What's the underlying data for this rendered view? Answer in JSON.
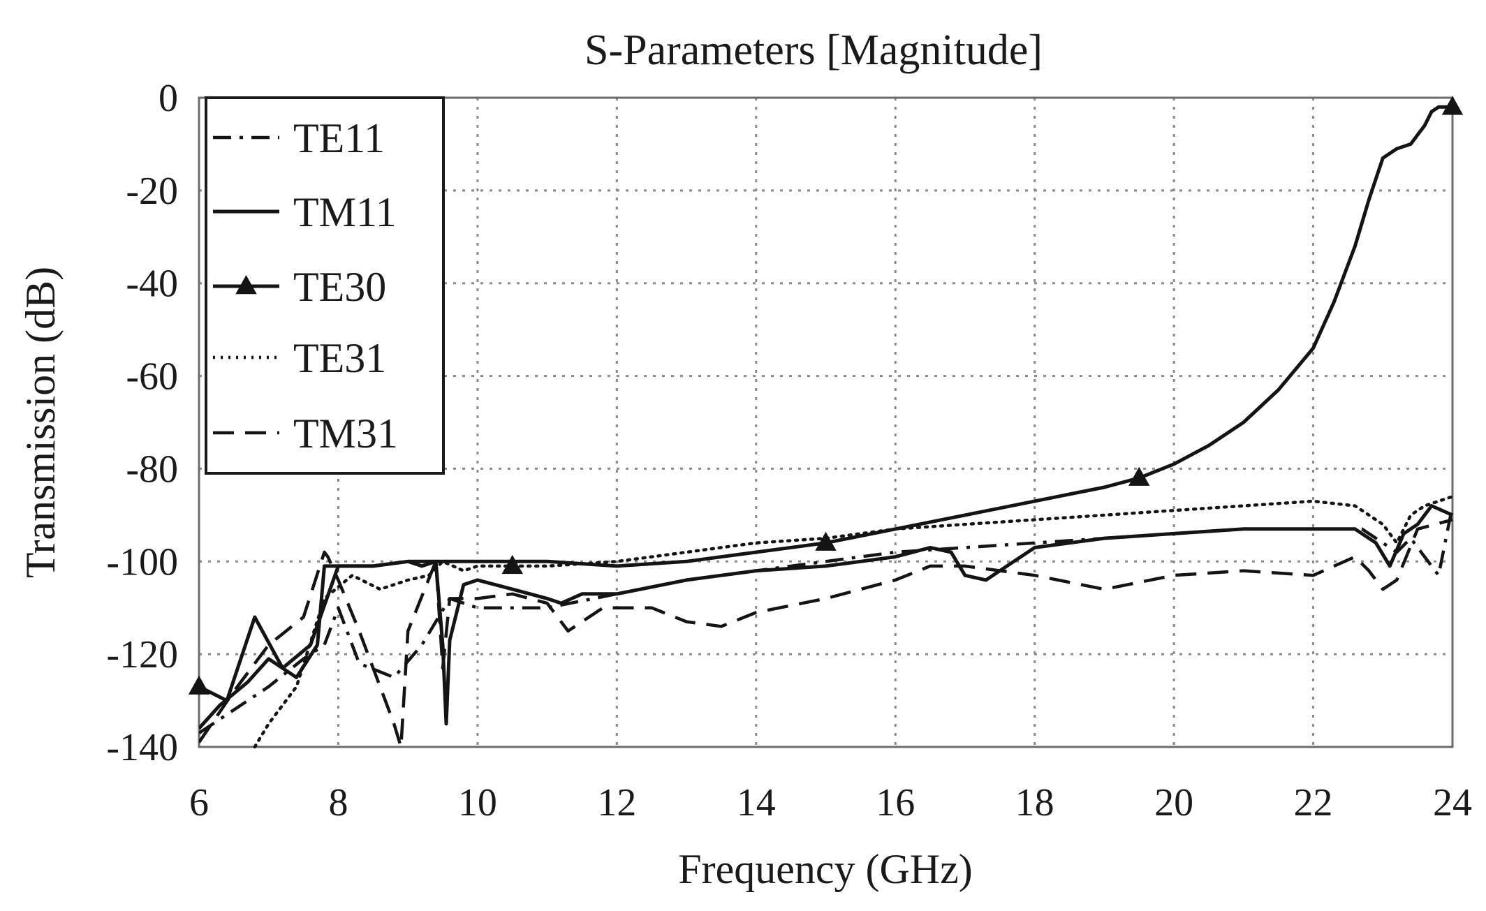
{
  "chart_data": {
    "type": "line",
    "title": "S-Parameters [Magnitude]",
    "xlabel": "Frequency (GHz)",
    "ylabel": "Transmission (dB)",
    "xlim": [
      6,
      24
    ],
    "ylim": [
      -140,
      0
    ],
    "xticks": [
      6,
      8,
      10,
      12,
      14,
      16,
      18,
      20,
      22,
      24
    ],
    "yticks": [
      0,
      -20,
      -40,
      -60,
      -80,
      -100,
      -120,
      -140
    ],
    "grid": true,
    "legend_position": "top-left",
    "series": [
      {
        "name": "TE11",
        "style": "dashdot",
        "x": [
          6,
          6.5,
          7,
          7.5,
          7.8,
          8.0,
          8.3,
          8.8,
          9.2,
          9.6,
          10,
          10.5,
          11,
          12,
          13,
          14,
          15,
          16,
          17,
          18,
          19,
          20,
          21,
          22,
          22.7,
          23.0,
          23.2,
          23.4,
          23.6,
          23.8,
          24
        ],
        "y": [
          -137,
          -132,
          -127,
          -121,
          -118,
          -110,
          -122,
          -125,
          -118,
          -108,
          -110,
          -110,
          -110,
          -107,
          -104,
          -102,
          -100,
          -98,
          -97,
          -96,
          -95,
          -94,
          -93,
          -93,
          -93,
          -96,
          -98,
          -95,
          -99,
          -103,
          -88
        ]
      },
      {
        "name": "TM11",
        "style": "solid",
        "x": [
          6,
          6.3,
          6.7,
          7.0,
          7.4,
          7.7,
          7.8,
          8.0,
          8.5,
          9.0,
          9.2,
          9.4,
          9.5,
          9.55,
          9.6,
          9.8,
          10,
          10.5,
          11,
          11.2,
          11.5,
          12,
          13,
          14,
          15,
          15.5,
          16,
          16.5,
          16.8,
          17.0,
          17.3,
          17.6,
          18,
          19,
          20,
          21,
          22,
          22.6,
          22.9,
          23.1,
          23.3,
          23.5,
          23.7,
          24
        ],
        "y": [
          -136,
          -131,
          -126,
          -121,
          -125,
          -118,
          -101,
          -101,
          -101,
          -100,
          -101,
          -100,
          -118,
          -135,
          -117,
          -105,
          -104,
          -106,
          -108,
          -109,
          -107,
          -107,
          -104,
          -102,
          -101,
          -100,
          -99,
          -97,
          -98,
          -103,
          -104,
          -101,
          -97,
          -95,
          -94,
          -93,
          -93,
          -93,
          -96,
          -101,
          -94,
          -92,
          -88,
          -90
        ]
      },
      {
        "name": "TE30",
        "style": "solid-triangle",
        "x": [
          6,
          6.4,
          6.8,
          7.2,
          7.6,
          8.0,
          8.5,
          9,
          10,
          11,
          12,
          13,
          14,
          15,
          16,
          17,
          18,
          19,
          19.5,
          20,
          20.5,
          21,
          21.5,
          22,
          22.3,
          22.6,
          22.8,
          23.0,
          23.2,
          23.4,
          23.5,
          23.6,
          23.7,
          23.8,
          24
        ],
        "y": [
          -127,
          -130,
          -112,
          -123,
          -118,
          -101,
          -101,
          -100,
          -100,
          -100,
          -101,
          -100,
          -98,
          -96,
          -93,
          -90,
          -87,
          -84,
          -82,
          -79,
          -75,
          -70,
          -63,
          -54,
          -44,
          -32,
          -22,
          -13,
          -11,
          -10,
          -8,
          -6,
          -3,
          -2,
          -2
        ],
        "markers_x": [
          6,
          10.5,
          15,
          19.5,
          24
        ],
        "markers_y": [
          -127,
          -101,
          -96,
          -82,
          -2
        ]
      },
      {
        "name": "TE31",
        "style": "dotted",
        "x": [
          6.8,
          7.0,
          7.4,
          7.8,
          8.2,
          8.6,
          9.0,
          9.3,
          9.5,
          9.8,
          10,
          11,
          12,
          13,
          14,
          15,
          16,
          17,
          18,
          19,
          20,
          21,
          22,
          22.6,
          23.0,
          23.2,
          23.4,
          23.6,
          24
        ],
        "y": [
          -140,
          -135,
          -127,
          -108,
          -103,
          -106,
          -104,
          -103,
          -100,
          -102,
          -101,
          -101,
          -100,
          -98,
          -96,
          -95,
          -93,
          -92,
          -91,
          -90,
          -89,
          -88,
          -87,
          -88,
          -92,
          -96,
          -90,
          -88,
          -86
        ]
      },
      {
        "name": "TM31",
        "style": "dashed",
        "x": [
          6,
          6.5,
          7,
          7.5,
          7.8,
          7.85,
          8.0,
          8.3,
          8.6,
          8.8,
          8.9,
          9.0,
          9.4,
          9.5,
          9.6,
          10,
          10.5,
          11,
          11.3,
          11.8,
          12.5,
          13.0,
          13.5,
          14,
          15,
          16,
          16.5,
          17,
          18,
          19,
          20,
          21,
          22,
          22.6,
          22.8,
          23.0,
          23.2,
          23.5,
          24
        ],
        "y": [
          -139,
          -128,
          -118,
          -112,
          -98,
          -99,
          -104,
          -115,
          -127,
          -135,
          -140,
          -115,
          -100,
          -123,
          -108,
          -108,
          -107,
          -109,
          -115,
          -110,
          -110,
          -113,
          -114,
          -111,
          -108,
          -104,
          -101,
          -101,
          -103,
          -106,
          -103,
          -102,
          -103,
          -99,
          -102,
          -106,
          -104,
          -93,
          -91
        ]
      }
    ]
  }
}
